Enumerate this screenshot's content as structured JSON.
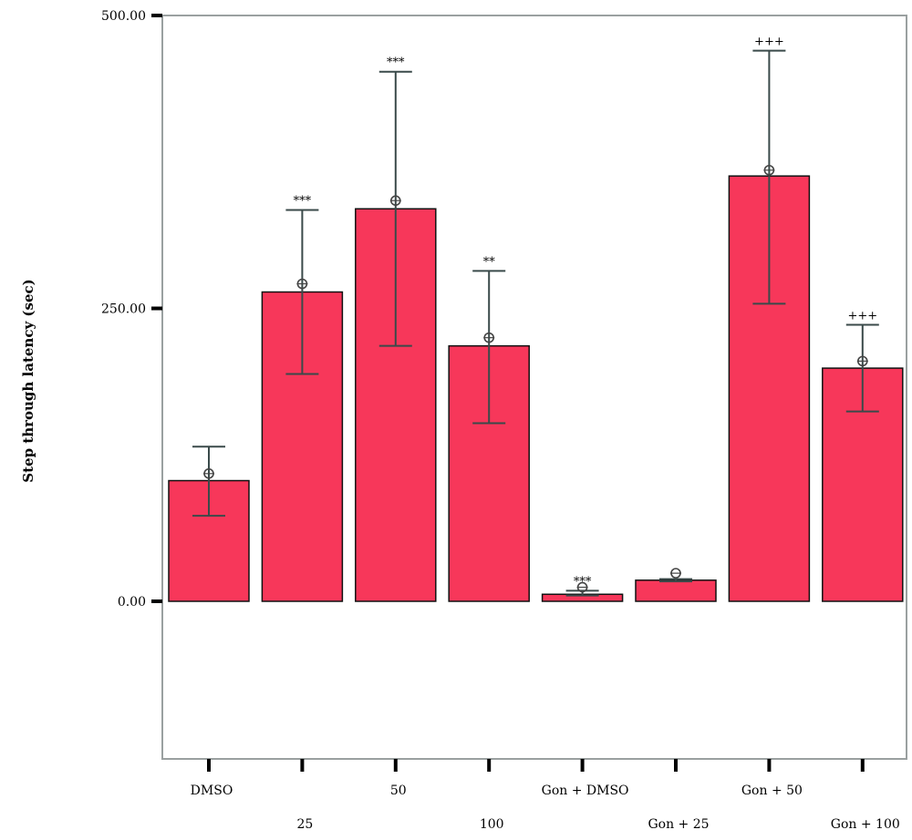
{
  "chart_data": {
    "type": "bar",
    "title": "",
    "xlabel": "",
    "ylabel": "Step through latency (sec)",
    "ylim": [
      -130,
      500
    ],
    "yticks": [
      0,
      250,
      500
    ],
    "ytick_labels": [
      "0.00",
      "250.00",
      "500.00"
    ],
    "grid": false,
    "categories": [
      "DMSO",
      "25",
      "50",
      "100",
      "Gon + DMSO",
      "Gon + 25",
      "Gon + 50",
      "Gon + 100"
    ],
    "values": [
      103,
      264,
      335,
      218,
      6,
      18,
      363,
      199
    ],
    "error_upper": [
      132,
      334,
      452,
      282,
      9,
      19,
      470,
      236
    ],
    "error_lower": [
      73,
      194,
      218,
      152,
      5,
      17,
      254,
      162
    ],
    "markers": [
      109,
      271,
      342,
      225,
      12,
      24,
      368,
      205
    ],
    "annotations": [
      "",
      "***",
      "***",
      "**",
      "***",
      "",
      "+++",
      "+++"
    ],
    "bar_color": "#f7375a",
    "errorbar_color": "#3a4a4a",
    "axis_color": "#000000"
  }
}
